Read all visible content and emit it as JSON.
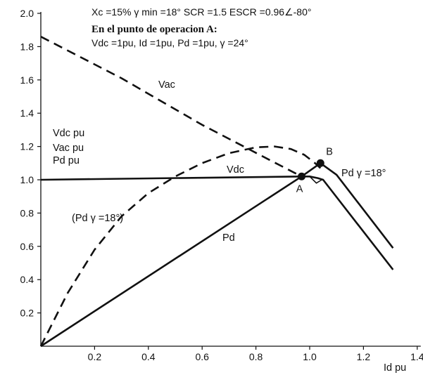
{
  "chart_data": {
    "type": "line",
    "header": {
      "params": "Xc =15%   γ min =18°   SCR =1.5   ESCR =0.96∠-80°",
      "op_title": "En el punto de operacion A:",
      "op_values": "Vdc =1pu, Id =1pu, Pd =1pu, γ =24°"
    },
    "xlabel": "Id pu",
    "ylabel_lines": [
      "Vdc pu",
      "Vac pu",
      "Pd pu"
    ],
    "xlim": [
      0,
      1.4
    ],
    "ylim": [
      0,
      2.0
    ],
    "x_ticks": [
      "0.2",
      "0.4",
      "0.6",
      "0.8",
      "1.0",
      "1.2",
      "1.4"
    ],
    "y_ticks": [
      "0.2",
      "0.4",
      "0.6",
      "0.8",
      "1.0",
      "1.2",
      "1.4",
      "1.6",
      "1.8",
      "2.0"
    ],
    "series": [
      {
        "key": "vac",
        "style": "dashed",
        "points": [
          [
            0,
            1.86
          ],
          [
            0.3,
            1.61
          ],
          [
            0.6,
            1.33
          ],
          [
            0.85,
            1.12
          ],
          [
            0.97,
            1.02
          ]
        ]
      },
      {
        "key": "pd_dashed",
        "style": "dashed",
        "points": [
          [
            0,
            0
          ],
          [
            0.1,
            0.32
          ],
          [
            0.2,
            0.58
          ],
          [
            0.3,
            0.78
          ],
          [
            0.4,
            0.92
          ],
          [
            0.5,
            1.02
          ],
          [
            0.6,
            1.1
          ],
          [
            0.7,
            1.16
          ],
          [
            0.8,
            1.195
          ],
          [
            0.87,
            1.2
          ],
          [
            0.93,
            1.185
          ],
          [
            0.98,
            1.15
          ],
          [
            1.02,
            1.1
          ],
          [
            1.04,
            1.07
          ]
        ]
      },
      {
        "key": "vdc",
        "style": "solid",
        "points": [
          [
            0,
            1.0
          ],
          [
            0.97,
            1.02
          ],
          [
            1.0,
            1.02
          ],
          [
            1.03,
            1.01
          ],
          [
            1.05,
            1.0
          ],
          [
            1.31,
            0.46
          ]
        ]
      },
      {
        "key": "pd",
        "style": "solid",
        "points": [
          [
            0,
            0
          ],
          [
            0.97,
            1.02
          ],
          [
            1.04,
            1.1
          ],
          [
            1.1,
            1.03
          ],
          [
            1.31,
            0.59
          ]
        ]
      }
    ],
    "points": [
      {
        "name": "A",
        "x": 0.97,
        "y": 1.02
      },
      {
        "name": "B",
        "x": 1.04,
        "y": 1.1
      }
    ],
    "annotations": {
      "vac": "Vac",
      "vdc": "Vdc",
      "pd": "Pd",
      "pd_dashed": "(Pd γ =18°)",
      "pd_right": "Pd  γ  =18°"
    }
  }
}
